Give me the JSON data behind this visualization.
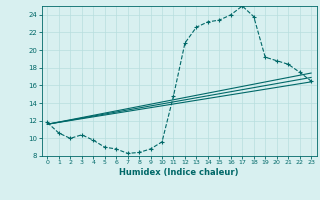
{
  "title": "",
  "xlabel": "Humidex (Indice chaleur)",
  "bg_color": "#d8f0f0",
  "grid_color": "#b8dede",
  "line_color": "#006868",
  "xlim": [
    -0.5,
    23.5
  ],
  "ylim": [
    8,
    25
  ],
  "xticks": [
    0,
    1,
    2,
    3,
    4,
    5,
    6,
    7,
    8,
    9,
    10,
    11,
    12,
    13,
    14,
    15,
    16,
    17,
    18,
    19,
    20,
    21,
    22,
    23
  ],
  "yticks": [
    8,
    10,
    12,
    14,
    16,
    18,
    20,
    22,
    24
  ],
  "line1_x": [
    0,
    1,
    2,
    3,
    4,
    5,
    6,
    7,
    8,
    9,
    10,
    11,
    12,
    13,
    14,
    15,
    16,
    17,
    18,
    19,
    20,
    21,
    22,
    23
  ],
  "line1_y": [
    11.8,
    10.6,
    10.0,
    10.4,
    9.8,
    9.0,
    8.8,
    8.3,
    8.4,
    8.8,
    9.6,
    14.8,
    20.8,
    22.6,
    23.2,
    23.4,
    24.0,
    25.0,
    23.8,
    19.2,
    18.8,
    18.4,
    17.5,
    16.5
  ],
  "line2_x": [
    0,
    23
  ],
  "line2_y": [
    11.6,
    16.4
  ],
  "line3_x": [
    0,
    23
  ],
  "line3_y": [
    11.6,
    16.9
  ],
  "line4_x": [
    0,
    23
  ],
  "line4_y": [
    11.6,
    17.4
  ]
}
